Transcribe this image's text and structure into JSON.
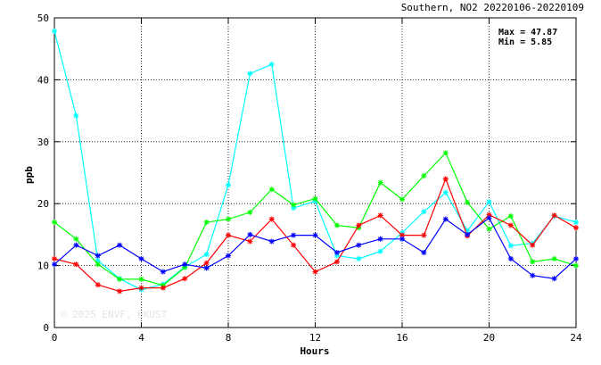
{
  "chart_data": {
    "type": "line",
    "title": "Southern, NO2 20220106-20220109",
    "xlabel": "Hours",
    "ylabel": "ppb",
    "xlim": [
      0,
      24
    ],
    "ylim": [
      0,
      50
    ],
    "xticks": [
      0,
      4,
      8,
      12,
      16,
      20,
      24
    ],
    "yticks": [
      0,
      10,
      20,
      30,
      40,
      50
    ],
    "grid": true,
    "stats": [
      "Max = 47.87",
      "Min =  5.85"
    ],
    "watermark": "© 2025 ENVF, HKUST",
    "x": [
      0,
      1,
      2,
      3,
      4,
      5,
      6,
      7,
      8,
      9,
      10,
      11,
      12,
      13,
      14,
      15,
      16,
      17,
      18,
      19,
      20,
      21,
      22,
      23,
      24
    ],
    "series": [
      {
        "color": "#00ffff",
        "values": [
          47.87,
          34.2,
          10.8,
          7.9,
          6.1,
          7.0,
          9.8,
          11.8,
          23.0,
          41.0,
          42.5,
          19.3,
          20.4,
          11.6,
          11.1,
          12.3,
          15.3,
          18.7,
          21.8,
          15.6,
          20.3,
          13.2,
          13.6,
          18.0,
          17.0
        ]
      },
      {
        "color": "#00ff00",
        "values": [
          17.0,
          14.3,
          10.2,
          7.8,
          7.8,
          6.8,
          9.7,
          17.0,
          17.5,
          18.6,
          22.3,
          19.8,
          20.8,
          16.5,
          16.1,
          23.4,
          20.7,
          24.5,
          28.2,
          20.2,
          15.9,
          18.0,
          10.6,
          11.1,
          10.0
        ]
      },
      {
        "color": "#ff0000",
        "values": [
          11.1,
          10.2,
          6.9,
          5.85,
          6.4,
          6.4,
          7.9,
          10.4,
          14.9,
          13.9,
          17.5,
          13.3,
          9.0,
          10.6,
          16.5,
          18.1,
          14.9,
          14.9,
          24.0,
          14.8,
          18.2,
          16.5,
          13.3,
          18.1,
          16.1
        ]
      },
      {
        "color": "#0000ff",
        "values": [
          10.2,
          13.3,
          11.6,
          13.3,
          11.1,
          9.0,
          10.2,
          9.6,
          11.6,
          15.0,
          13.9,
          14.9,
          14.9,
          12.1,
          13.3,
          14.3,
          14.3,
          12.1,
          17.5,
          15.0,
          17.7,
          11.1,
          8.4,
          7.9,
          11.1
        ]
      }
    ]
  }
}
